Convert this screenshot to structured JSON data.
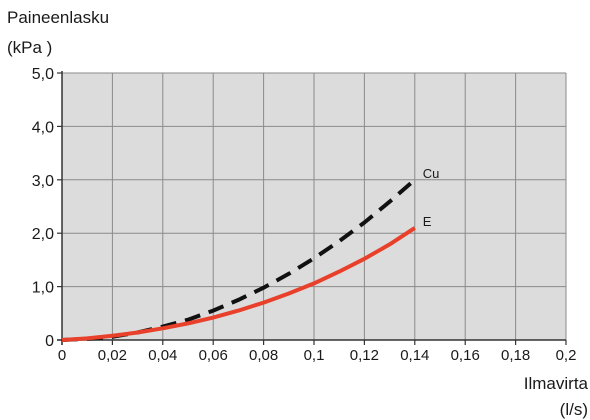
{
  "chart_data": {
    "type": "line",
    "ylabel": [
      "Paineenlasku",
      "(kPa )"
    ],
    "xlabel": [
      "Ilmavirta",
      "(l/s)"
    ],
    "xlim": [
      0,
      0.2
    ],
    "ylim": [
      0,
      5
    ],
    "x_ticks": [
      0,
      0.02,
      0.04,
      0.06,
      0.08,
      0.1,
      0.12,
      0.14,
      0.16,
      0.18,
      0.2
    ],
    "x_tick_labels": [
      "0",
      "0,02",
      "0,04",
      "0,06",
      "0,08",
      "0,1",
      "0,12",
      "0,14",
      "0,16",
      "0,18",
      "0,2"
    ],
    "y_ticks": [
      0,
      1,
      2,
      3,
      4,
      5
    ],
    "y_tick_labels": [
      "0",
      "1,0",
      "2,0",
      "3,0",
      "4,0",
      "5,0"
    ],
    "grid": true,
    "plot_background": "#dcdcdc",
    "series": [
      {
        "name": "Cu",
        "color": "#111111",
        "dashed": true,
        "x": [
          0,
          0.01,
          0.02,
          0.03,
          0.04,
          0.05,
          0.06,
          0.07,
          0.08,
          0.09,
          0.1,
          0.11,
          0.12,
          0.13,
          0.14
        ],
        "y": [
          0.0,
          0.02,
          0.06,
          0.14,
          0.25,
          0.38,
          0.55,
          0.75,
          0.98,
          1.24,
          1.53,
          1.85,
          2.2,
          2.59,
          3.0
        ]
      },
      {
        "name": "E",
        "color": "#e8402a",
        "dashed": false,
        "x": [
          0,
          0.01,
          0.02,
          0.03,
          0.04,
          0.05,
          0.06,
          0.07,
          0.08,
          0.09,
          0.1,
          0.11,
          0.12,
          0.13,
          0.14
        ],
        "y": [
          0.0,
          0.03,
          0.08,
          0.14,
          0.22,
          0.31,
          0.42,
          0.55,
          0.7,
          0.87,
          1.06,
          1.28,
          1.52,
          1.79,
          2.1
        ]
      }
    ]
  }
}
